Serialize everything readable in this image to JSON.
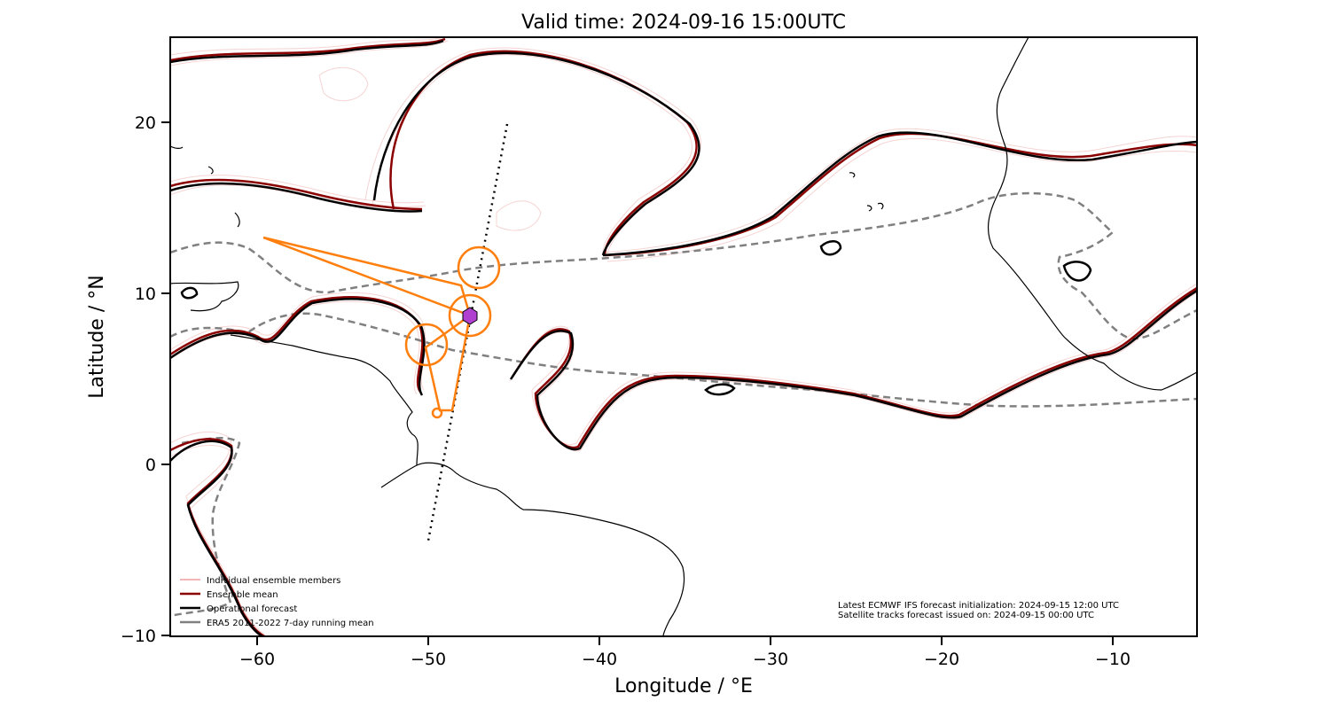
{
  "title": "Valid time: 2024-09-16 15:00UTC",
  "xlabel": "Longitude / °E",
  "ylabel": "Latitude / °N",
  "xticks": [
    "−60",
    "−50",
    "−40",
    "−30",
    "−20",
    "−10"
  ],
  "yticks": [
    "20",
    "10",
    "0",
    "−10"
  ],
  "legend": {
    "items": [
      {
        "label": "Individual ensemble members",
        "color": "#f3b6b6"
      },
      {
        "label": "Ensemble mean",
        "color": "#8b0000"
      },
      {
        "label": "Operational forecast",
        "color": "#000000"
      },
      {
        "label": "ERA5 2011-2022 7-day running mean",
        "color": "#808080"
      }
    ]
  },
  "notes": {
    "line1": "Latest ECMWF IFS forecast initialization: 2024-09-15 12:00 UTC",
    "line2": "Satellite tracks forecast issued on: 2024-09-15 00:00 UTC"
  },
  "map": {
    "extent": {
      "lon": [
        -65,
        -5
      ],
      "lat": [
        -10,
        25
      ]
    },
    "storm_marker": {
      "lon": -47.6,
      "lat": 8.6,
      "color": "#b040d0",
      "shape": "hexagon"
    },
    "track_color": "#ff7f0e"
  }
}
